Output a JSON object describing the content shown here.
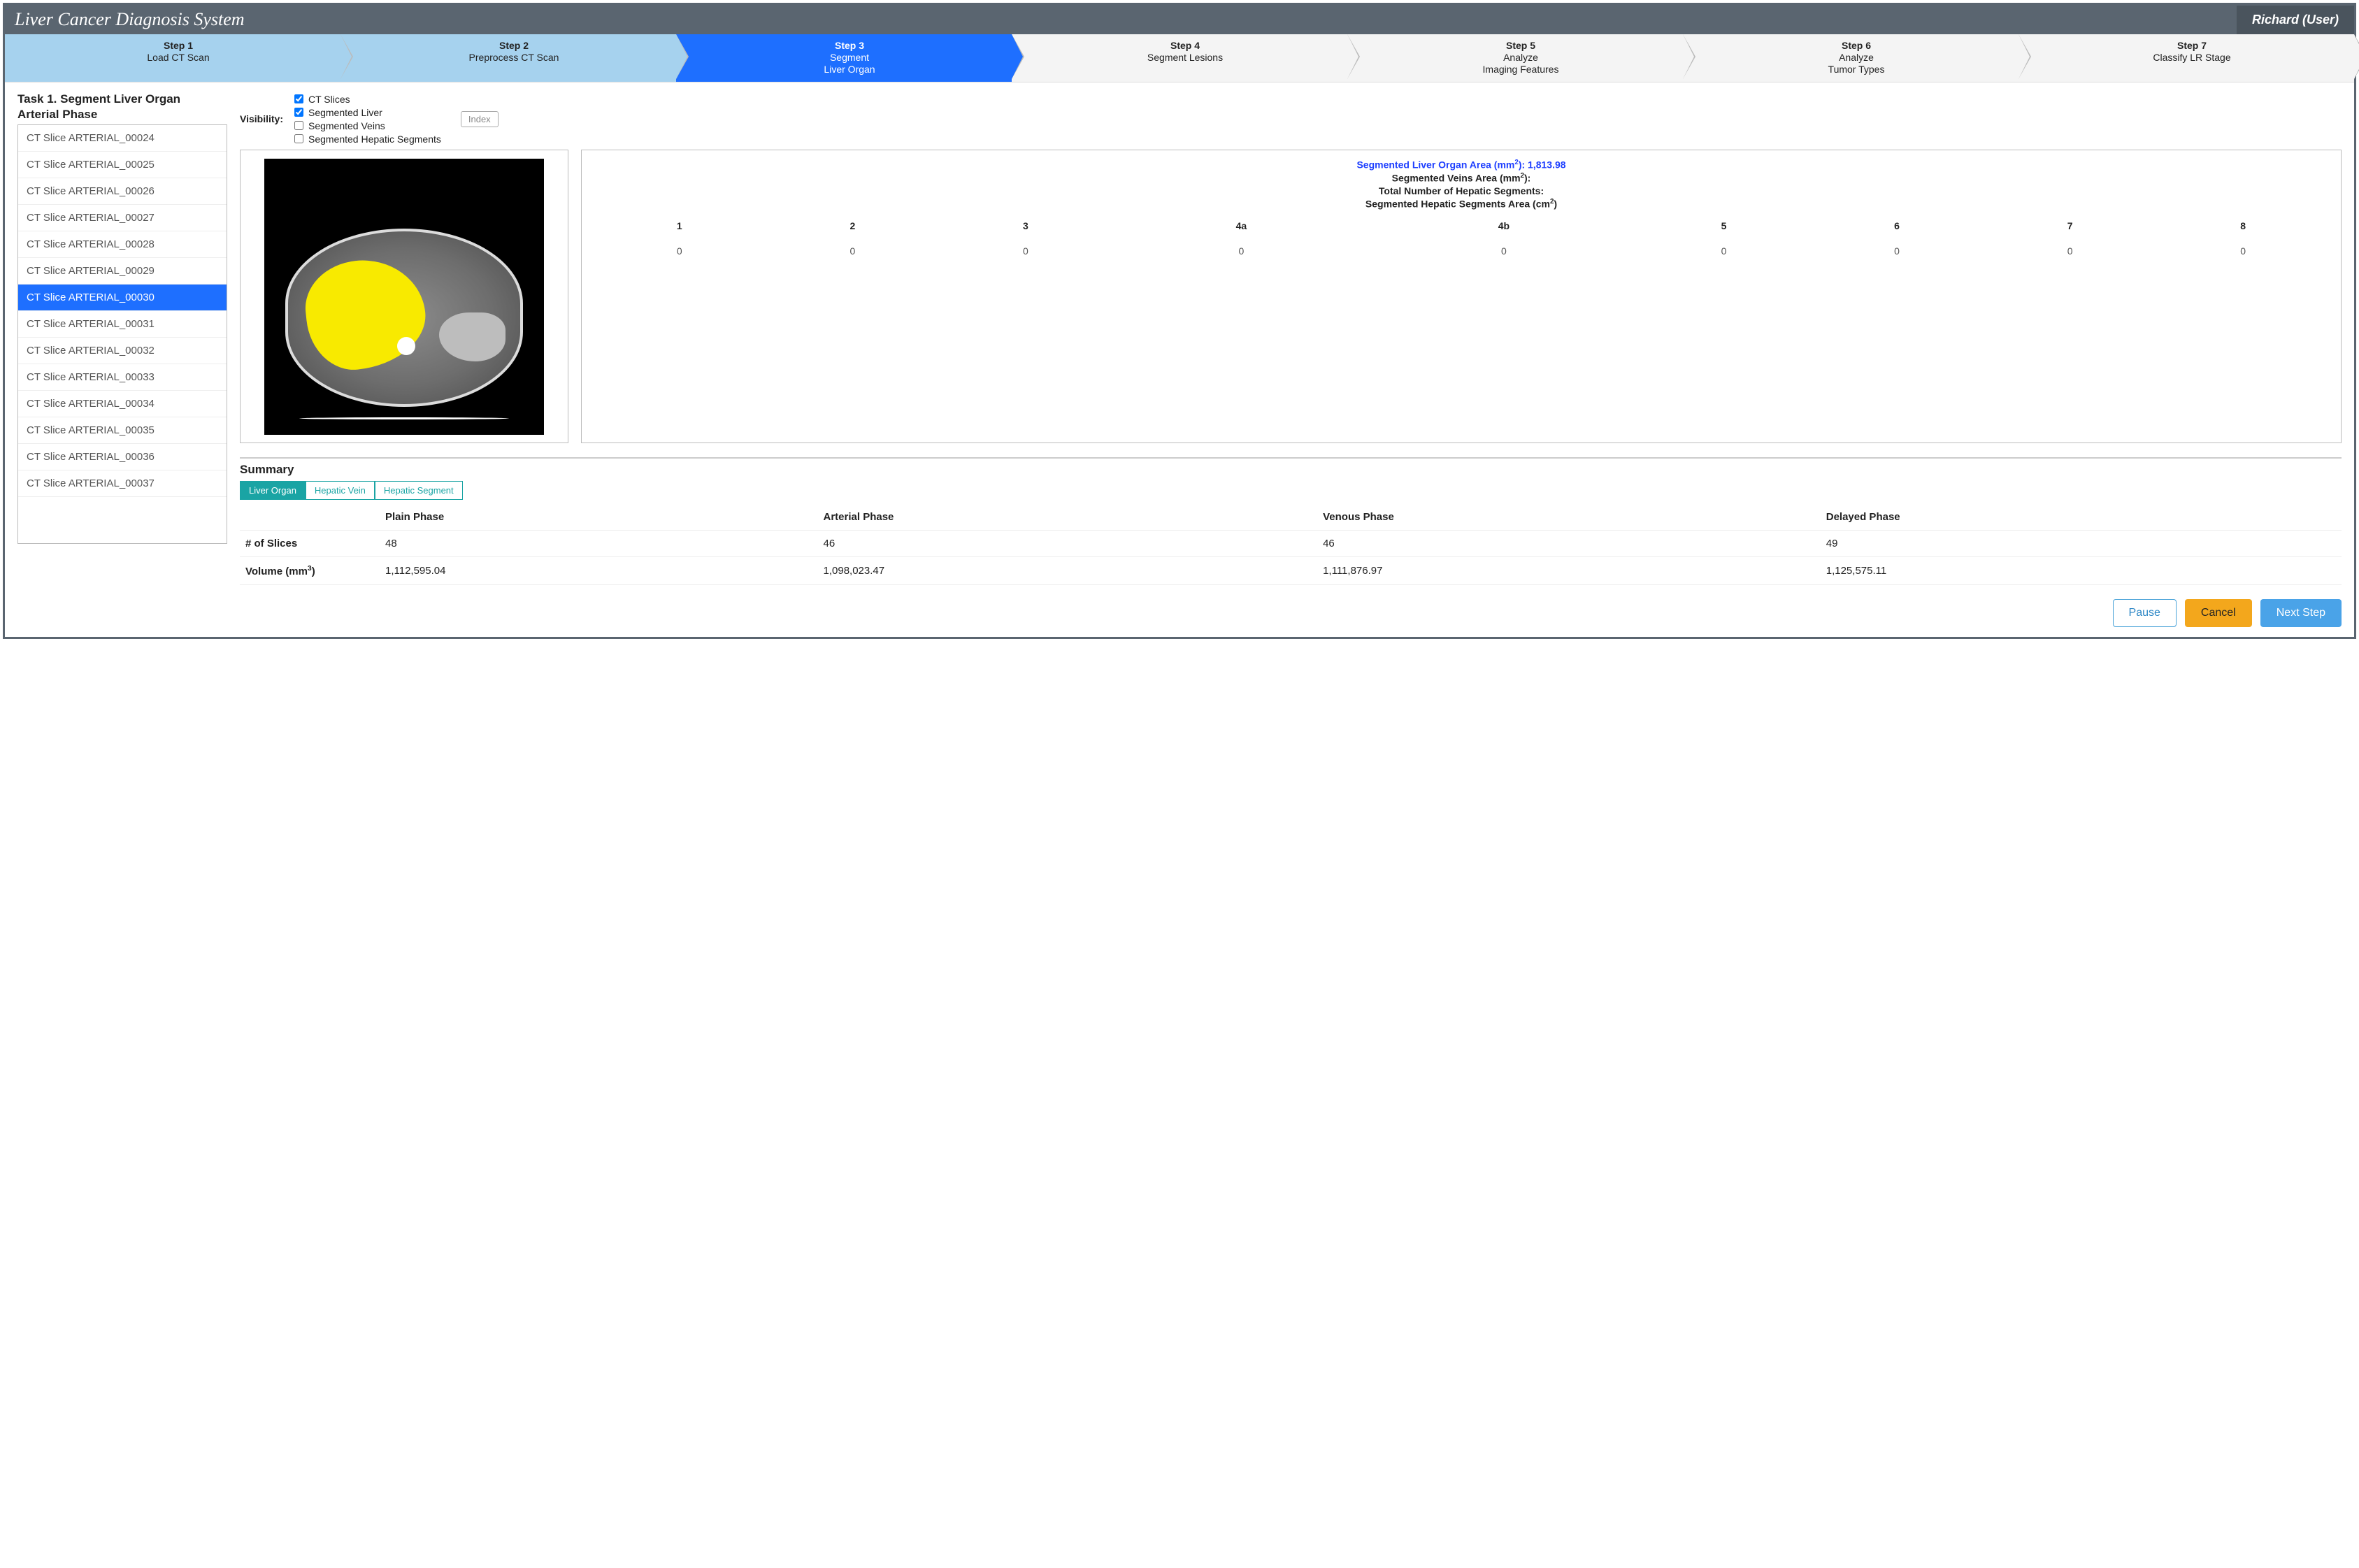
{
  "titlebar": {
    "title": "Liver Cancer Diagnosis System",
    "user": "Richard (User)"
  },
  "steps": [
    {
      "title": "Step 1",
      "sub": "Load CT Scan",
      "state": "done"
    },
    {
      "title": "Step 2",
      "sub": "Preprocess CT Scan",
      "state": "done"
    },
    {
      "title": "Step 3",
      "sub": "Segment\nLiver Organ",
      "state": "active"
    },
    {
      "title": "Step 4",
      "sub": "Segment Lesions",
      "state": "todo"
    },
    {
      "title": "Step 5",
      "sub": "Analyze\nImaging Features",
      "state": "todo"
    },
    {
      "title": "Step 6",
      "sub": "Analyze\nTumor Types",
      "state": "todo"
    },
    {
      "title": "Step 7",
      "sub": "Classify LR Stage",
      "state": "todo"
    }
  ],
  "task": {
    "heading": "Task 1. Segment Liver Organ",
    "phase": "Arterial Phase"
  },
  "slices": {
    "selected": "CT Slice ARTERIAL_00030",
    "items": [
      "CT Slice ARTERIAL_00024",
      "CT Slice ARTERIAL_00025",
      "CT Slice ARTERIAL_00026",
      "CT Slice ARTERIAL_00027",
      "CT Slice ARTERIAL_00028",
      "CT Slice ARTERIAL_00029",
      "CT Slice ARTERIAL_00030",
      "CT Slice ARTERIAL_00031",
      "CT Slice ARTERIAL_00032",
      "CT Slice ARTERIAL_00033",
      "CT Slice ARTERIAL_00034",
      "CT Slice ARTERIAL_00035",
      "CT Slice ARTERIAL_00036",
      "CT Slice ARTERIAL_00037"
    ]
  },
  "visibility": {
    "label": "Visibility:",
    "options": [
      {
        "label": "CT Slices",
        "checked": true
      },
      {
        "label": "Segmented Liver",
        "checked": true
      },
      {
        "label": "Segmented Veins",
        "checked": false
      },
      {
        "label": "Segmented Hepatic Segments",
        "checked": false
      }
    ],
    "index_btn": "Index"
  },
  "ct_view": {
    "background": "#000000",
    "liver_overlay_color": "#f8ea00",
    "body_border_color": "#dcdcdc"
  },
  "stats": {
    "liver_area_label_prefix": "Segmented Liver Organ Area (mm",
    "liver_area_label_suffix": "): ",
    "liver_area_value": "1,813.98",
    "veins_label_prefix": "Segmented Veins Area (mm",
    "veins_label_suffix": "):",
    "hep_count_label": "Total Number of Hepatic Segments:",
    "hep_area_label_prefix": "Segmented Hepatic Segments Area (cm",
    "hep_area_label_suffix": ")",
    "segment_headers": [
      "1",
      "2",
      "3",
      "4a",
      "4b",
      "5",
      "6",
      "7",
      "8"
    ],
    "segment_values": [
      "0",
      "0",
      "0",
      "0",
      "0",
      "0",
      "0",
      "0",
      "0"
    ],
    "colors": {
      "highlight": "#1e3fff",
      "text": "#222222"
    }
  },
  "summary": {
    "title": "Summary",
    "tabs": [
      {
        "label": "Liver Organ",
        "active": true
      },
      {
        "label": "Hepatic Vein",
        "active": false
      },
      {
        "label": "Hepatic Segment",
        "active": false
      }
    ],
    "columns": [
      "",
      "Plain Phase",
      "Arterial Phase",
      "Venous Phase",
      "Delayed Phase"
    ],
    "rows": [
      {
        "head": "# of Slices",
        "cells": [
          "48",
          "46",
          "46",
          "49"
        ]
      },
      {
        "head_prefix": "Volume (mm",
        "head_suffix": ")",
        "cells": [
          "1,112,595.04",
          "1,098,023.47",
          "1,111,876.97",
          "1,125,575.11"
        ]
      }
    ]
  },
  "footer": {
    "pause": "Pause",
    "cancel": "Cancel",
    "next": "Next Step"
  },
  "colors": {
    "step_done_bg": "#a6d2ee",
    "step_active_bg": "#1e6fff",
    "tab_teal": "#1aa4a4",
    "btn_cancel": "#f3a71c",
    "btn_next": "#4aa3e8"
  }
}
